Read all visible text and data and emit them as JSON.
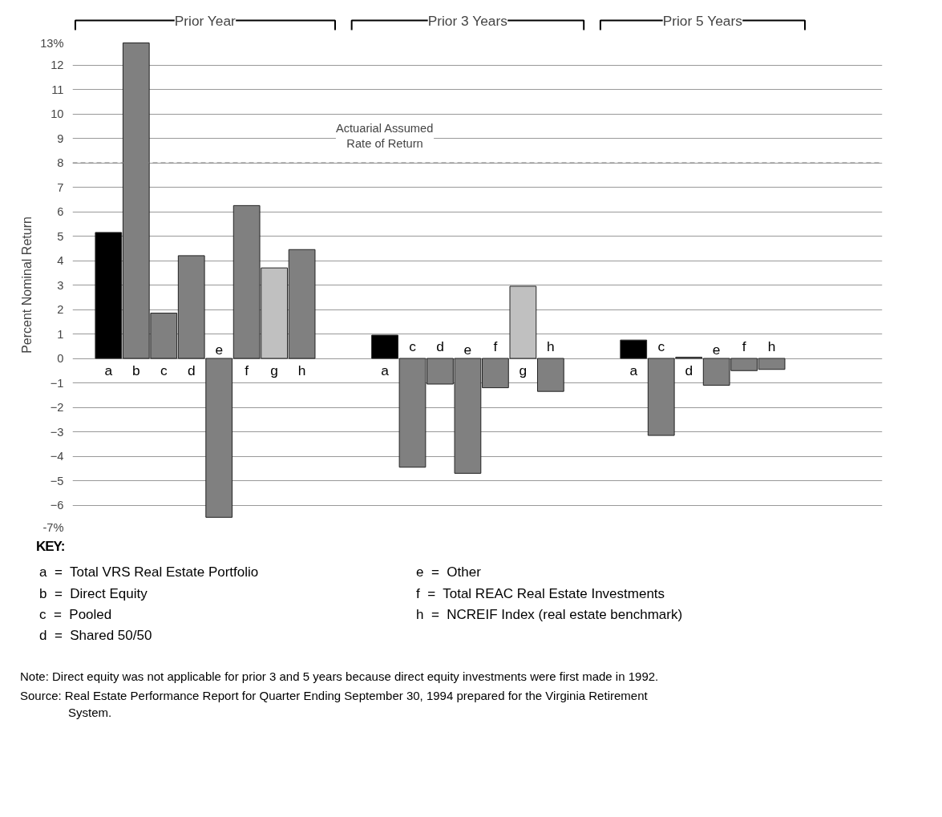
{
  "chart_data": {
    "type": "bar",
    "ylabel": "Percent Nominal Return",
    "categories": [
      "a",
      "b",
      "c",
      "d",
      "e",
      "f",
      "g",
      "h",
      null,
      null,
      "a",
      "c",
      "d",
      "e",
      "f",
      "g",
      "h",
      null,
      null,
      "a",
      "c",
      "d",
      "e",
      "f",
      "h"
    ],
    "values": [
      5.15,
      12.9,
      1.85,
      4.2,
      -6.5,
      6.25,
      3.7,
      4.45,
      null,
      null,
      0.95,
      -4.45,
      -1.05,
      -4.7,
      -1.2,
      2.95,
      -1.35,
      null,
      null,
      0.75,
      -3.15,
      0.05,
      -1.1,
      -0.5,
      -0.45
    ],
    "colors": [
      "#000000",
      "#808080",
      "#808080",
      "#808080",
      "#808080",
      "#808080",
      "#c0c0c0",
      "#808080",
      null,
      null,
      "#000000",
      "#808080",
      "#808080",
      "#808080",
      "#808080",
      "#c0c0c0",
      "#808080",
      null,
      null,
      "#000000",
      "#808080",
      "#808080",
      "#808080",
      "#808080",
      "#808080"
    ],
    "ylim": [
      -7,
      13
    ],
    "yticks": [
      {
        "value": -7,
        "label": "-7%"
      },
      -6,
      -5,
      -4,
      -3,
      -2,
      -1,
      0,
      1,
      2,
      3,
      4,
      5,
      6,
      7,
      8,
      9,
      10,
      11,
      12,
      {
        "value": 13,
        "label": "13%"
      }
    ],
    "grid": "y",
    "ref_lines": [
      {
        "axis": "y",
        "value": 8,
        "label": "Actuarial Assumed\nRate of Return",
        "line_style": "dashed",
        "color": "#808080"
      }
    ],
    "annotations": [
      "Prior Year",
      "Prior 3 Years",
      "Prior 5 Years",
      "KEY:",
      "a  =  Total VRS Real Estate Portfolio",
      "b  =  Direct Equity",
      "c  =  Pooled",
      "d  =  Shared 50/50",
      "e  =  Other",
      "f  =  Total REAC Real Estate Investments",
      "h  =  NCREIF Index (real estate benchmark)",
      "Note:  Direct equity was not applicable for prior 3 and 5 years because direct equity investments were first made in 1992.",
      "Source:  Real Estate Performance Report for Quarter Ending September 30, 1994 prepared for the Virginia Retirement System."
    ]
  }
}
